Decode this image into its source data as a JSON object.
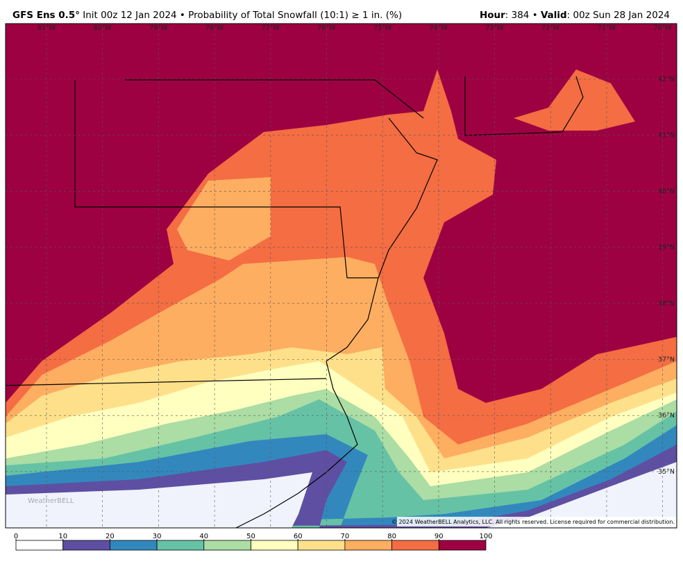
{
  "header": {
    "model": "GFS Ens 0.5°",
    "init": "Init 00z 12 Jan 2024",
    "sep": "•",
    "product": "Probability of Total Snowfall (10:1) ≥ 1 in. (%)",
    "hour_label": "Hour",
    "hour": ": 384",
    "valid_label": "Valid",
    "valid": ": 00z Sun 28 Jan 2024"
  },
  "map": {
    "longitudes": [
      "81°W",
      "80°W",
      "79°W",
      "78°W",
      "77°W",
      "76°W",
      "75°W",
      "74°W",
      "73°W",
      "72°W",
      "71°W",
      "70°W"
    ],
    "latitudes": [
      "42°N",
      "41°N",
      "40°N",
      "39°N",
      "38°N",
      "37°N",
      "36°N",
      "35°N"
    ],
    "copyright": "© 2024 WeatherBELL Analytics, LLC. All rights reserved. License required for commercial distribution.",
    "logo": "WeatherBELL"
  },
  "colorbar": {
    "ticks": [
      0,
      10,
      20,
      30,
      40,
      50,
      60,
      70,
      80,
      90,
      100
    ],
    "colors": [
      "#ffffff",
      "#5e4fa2",
      "#3288bd",
      "#66c2a5",
      "#abdda4",
      "#ffffbf",
      "#fee08b",
      "#fdae61",
      "#f46d43",
      "#9e0142"
    ]
  }
}
